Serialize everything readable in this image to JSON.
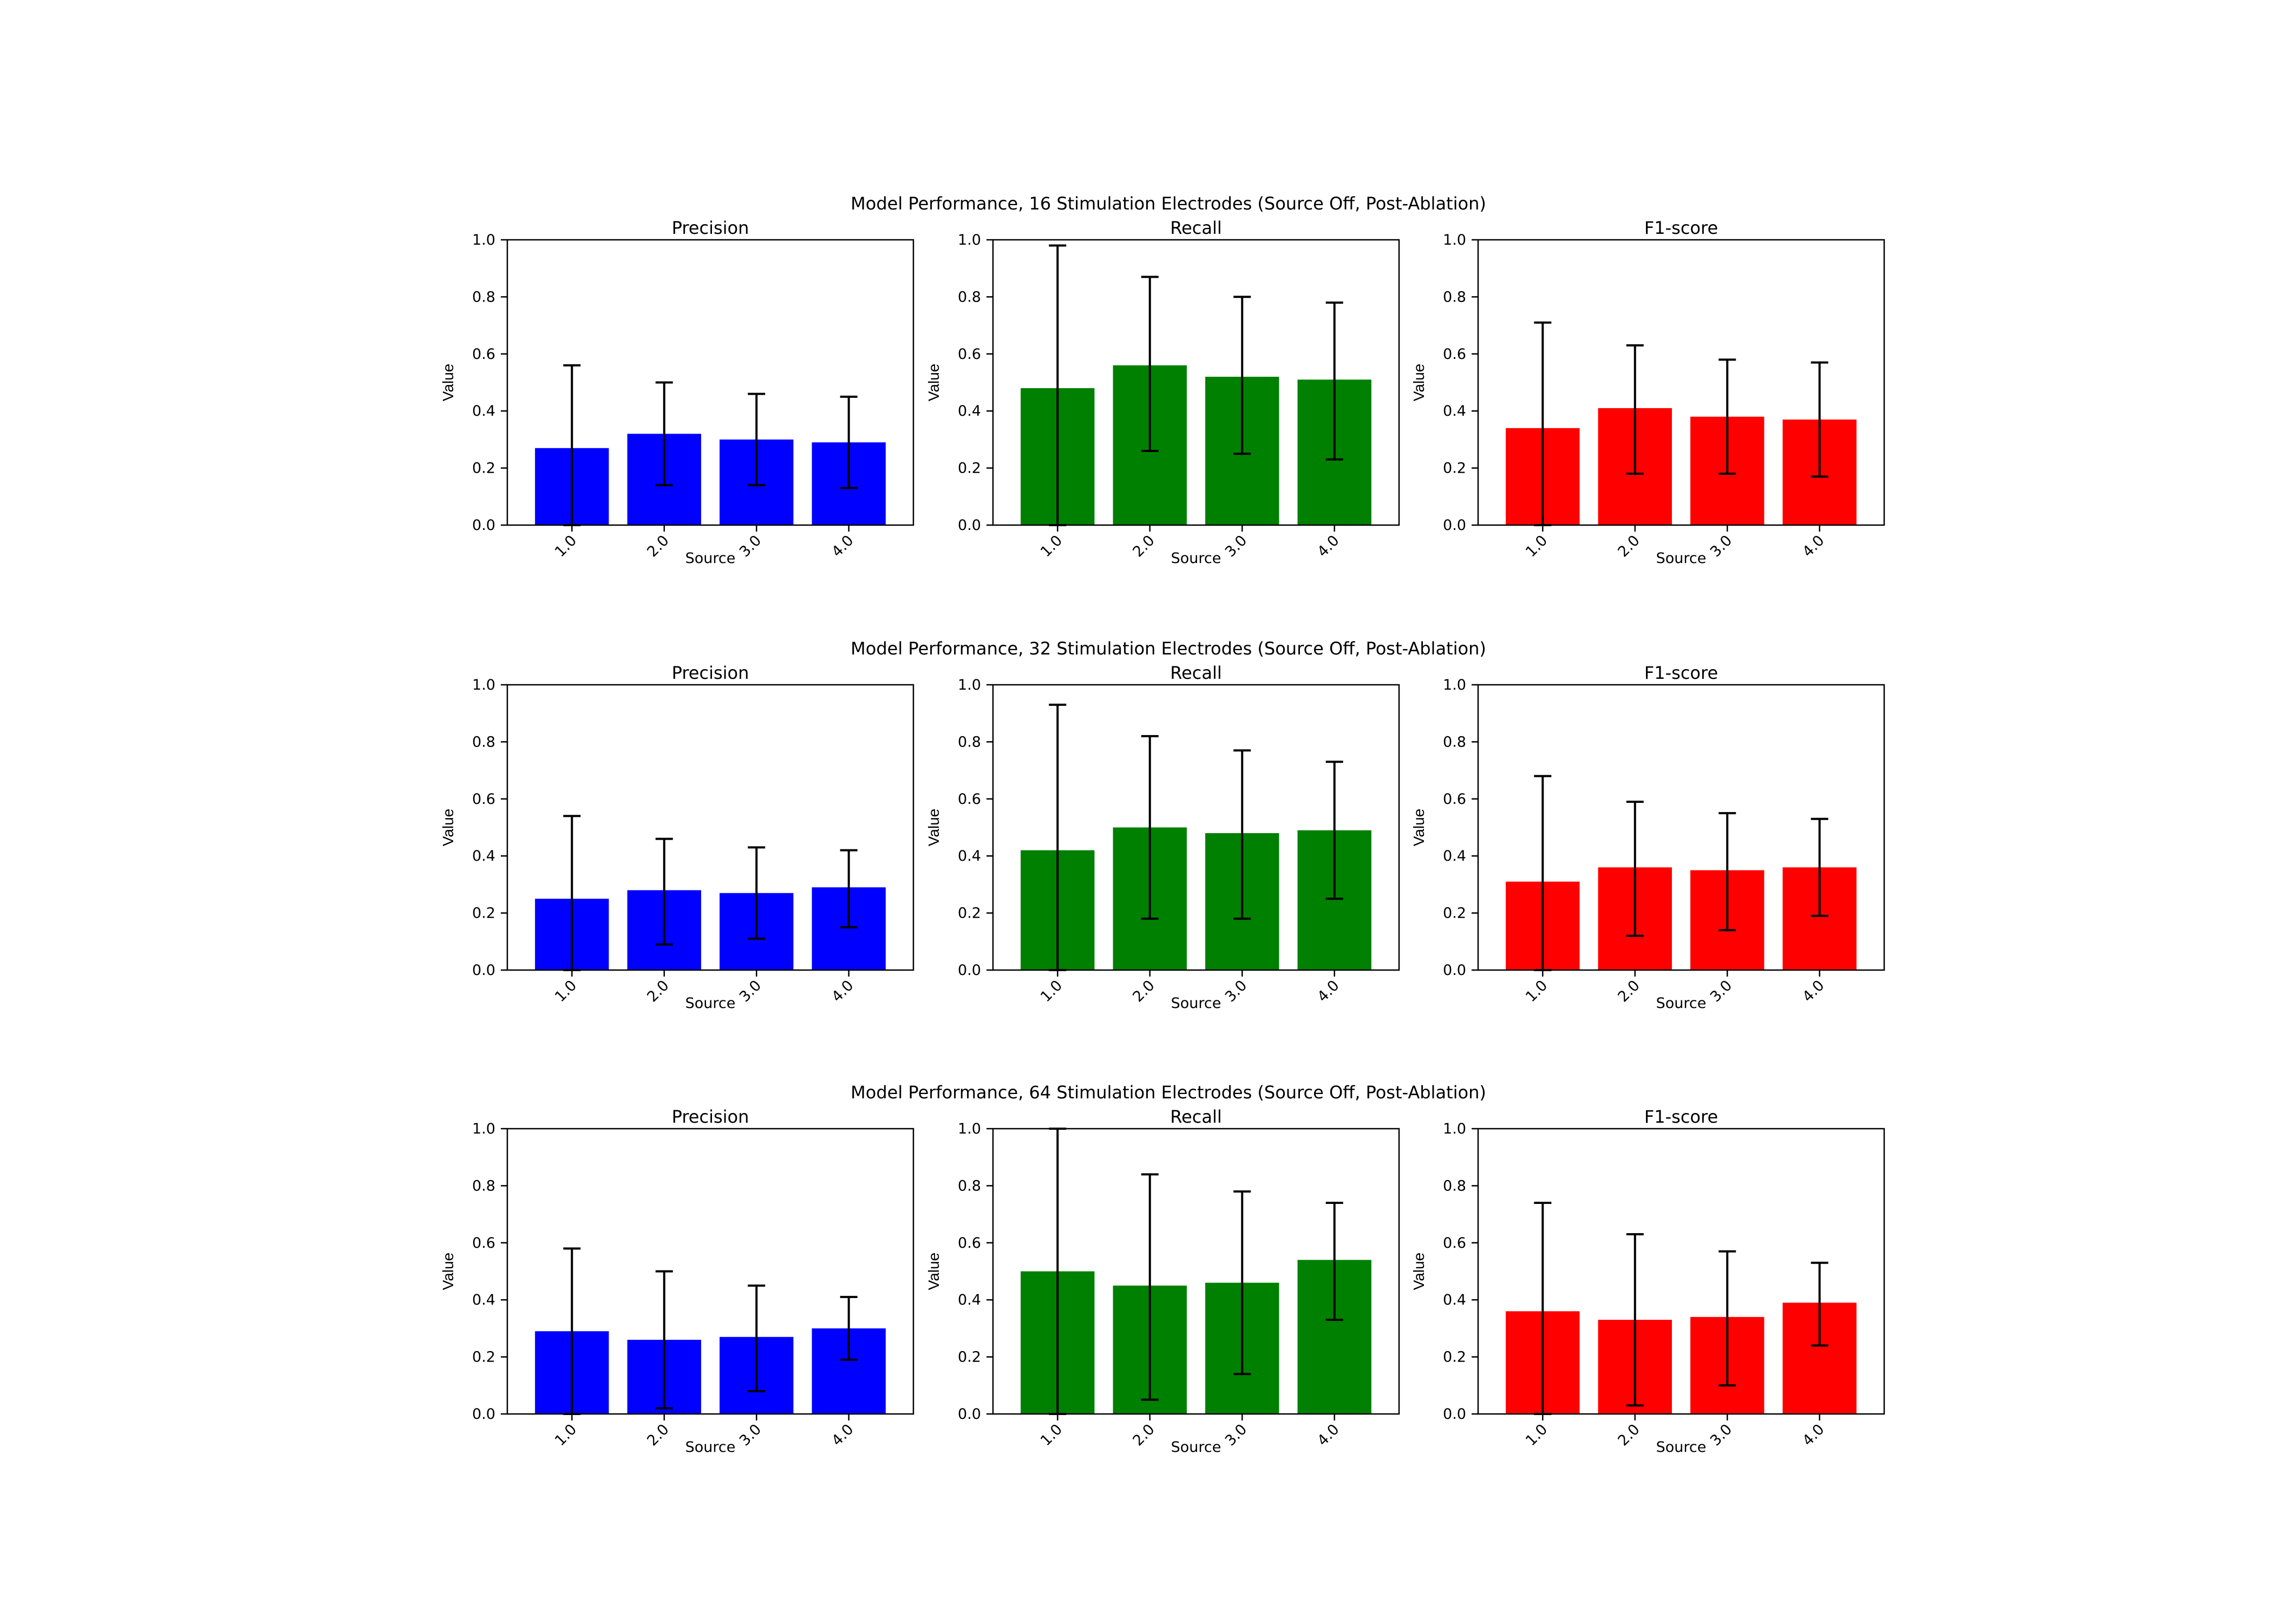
{
  "chart_data": [
    {
      "title": "Model Performance, 16 Stimulation Electrodes (Source Off, Post-Ablation)",
      "panels": [
        {
          "type": "bar",
          "title": "Precision",
          "xlabel": "Source",
          "ylabel": "Value",
          "ylim": [
            0,
            1.0
          ],
          "color": "#0000ff",
          "categories": [
            "1.0",
            "2.0",
            "3.0",
            "4.0"
          ],
          "values": [
            0.27,
            0.32,
            0.3,
            0.29
          ],
          "err_low": [
            0.0,
            0.14,
            0.14,
            0.13
          ],
          "err_high": [
            0.56,
            0.5,
            0.46,
            0.45
          ]
        },
        {
          "type": "bar",
          "title": "Recall",
          "xlabel": "Source",
          "ylabel": "Value",
          "ylim": [
            0,
            1.0
          ],
          "color": "#008000",
          "categories": [
            "1.0",
            "2.0",
            "3.0",
            "4.0"
          ],
          "values": [
            0.48,
            0.56,
            0.52,
            0.51
          ],
          "err_low": [
            0.0,
            0.26,
            0.25,
            0.23
          ],
          "err_high": [
            0.98,
            0.87,
            0.8,
            0.78
          ]
        },
        {
          "type": "bar",
          "title": "F1-score",
          "xlabel": "Source",
          "ylabel": "Value",
          "ylim": [
            0,
            1.0
          ],
          "color": "#ff0000",
          "categories": [
            "1.0",
            "2.0",
            "3.0",
            "4.0"
          ],
          "values": [
            0.34,
            0.41,
            0.38,
            0.37
          ],
          "err_low": [
            0.0,
            0.18,
            0.18,
            0.17
          ],
          "err_high": [
            0.71,
            0.63,
            0.58,
            0.57
          ]
        }
      ]
    },
    {
      "title": "Model Performance, 32 Stimulation Electrodes (Source Off, Post-Ablation)",
      "panels": [
        {
          "type": "bar",
          "title": "Precision",
          "xlabel": "Source",
          "ylabel": "Value",
          "ylim": [
            0,
            1.0
          ],
          "color": "#0000ff",
          "categories": [
            "1.0",
            "2.0",
            "3.0",
            "4.0"
          ],
          "values": [
            0.25,
            0.28,
            0.27,
            0.29
          ],
          "err_low": [
            0.0,
            0.09,
            0.11,
            0.15
          ],
          "err_high": [
            0.54,
            0.46,
            0.43,
            0.42
          ]
        },
        {
          "type": "bar",
          "title": "Recall",
          "xlabel": "Source",
          "ylabel": "Value",
          "ylim": [
            0,
            1.0
          ],
          "color": "#008000",
          "categories": [
            "1.0",
            "2.0",
            "3.0",
            "4.0"
          ],
          "values": [
            0.42,
            0.5,
            0.48,
            0.49
          ],
          "err_low": [
            0.0,
            0.18,
            0.18,
            0.25
          ],
          "err_high": [
            0.93,
            0.82,
            0.77,
            0.73
          ]
        },
        {
          "type": "bar",
          "title": "F1-score",
          "xlabel": "Source",
          "ylabel": "Value",
          "ylim": [
            0,
            1.0
          ],
          "color": "#ff0000",
          "categories": [
            "1.0",
            "2.0",
            "3.0",
            "4.0"
          ],
          "values": [
            0.31,
            0.36,
            0.35,
            0.36
          ],
          "err_low": [
            0.0,
            0.12,
            0.14,
            0.19
          ],
          "err_high": [
            0.68,
            0.59,
            0.55,
            0.53
          ]
        }
      ]
    },
    {
      "title": "Model Performance, 64 Stimulation Electrodes (Source Off, Post-Ablation)",
      "panels": [
        {
          "type": "bar",
          "title": "Precision",
          "xlabel": "Source",
          "ylabel": "Value",
          "ylim": [
            0,
            1.0
          ],
          "color": "#0000ff",
          "categories": [
            "1.0",
            "2.0",
            "3.0",
            "4.0"
          ],
          "values": [
            0.29,
            0.26,
            0.27,
            0.3
          ],
          "err_low": [
            0.0,
            0.02,
            0.08,
            0.19
          ],
          "err_high": [
            0.58,
            0.5,
            0.45,
            0.41
          ]
        },
        {
          "type": "bar",
          "title": "Recall",
          "xlabel": "Source",
          "ylabel": "Value",
          "ylim": [
            0,
            1.0
          ],
          "color": "#008000",
          "categories": [
            "1.0",
            "2.0",
            "3.0",
            "4.0"
          ],
          "values": [
            0.5,
            0.45,
            0.46,
            0.54
          ],
          "err_low": [
            0.0,
            0.05,
            0.14,
            0.33
          ],
          "err_high": [
            1.0,
            0.84,
            0.78,
            0.74
          ]
        },
        {
          "type": "bar",
          "title": "F1-score",
          "xlabel": "Source",
          "ylabel": "Value",
          "ylim": [
            0,
            1.0
          ],
          "color": "#ff0000",
          "categories": [
            "1.0",
            "2.0",
            "3.0",
            "4.0"
          ],
          "values": [
            0.36,
            0.33,
            0.34,
            0.39
          ],
          "err_low": [
            0.0,
            0.03,
            0.1,
            0.24
          ],
          "err_high": [
            0.74,
            0.63,
            0.57,
            0.53
          ]
        }
      ]
    }
  ]
}
